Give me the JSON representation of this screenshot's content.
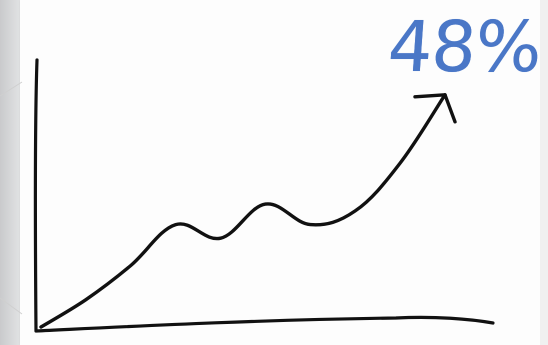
{
  "chart_data": {
    "type": "line",
    "title": "",
    "annotation": "48%",
    "xlabel": "",
    "ylabel": "",
    "grid": false,
    "legend": "none",
    "x": [
      0,
      1,
      2,
      3,
      4,
      5,
      6,
      7,
      8,
      9
    ],
    "series": [
      {
        "values": [
          0,
          8,
          18,
          30,
          26,
          36,
          30,
          34,
          48,
          68
        ]
      }
    ],
    "ylim": [
      0,
      70
    ],
    "colors": {
      "line": "#111111",
      "annotation": "#4a77c7"
    }
  }
}
